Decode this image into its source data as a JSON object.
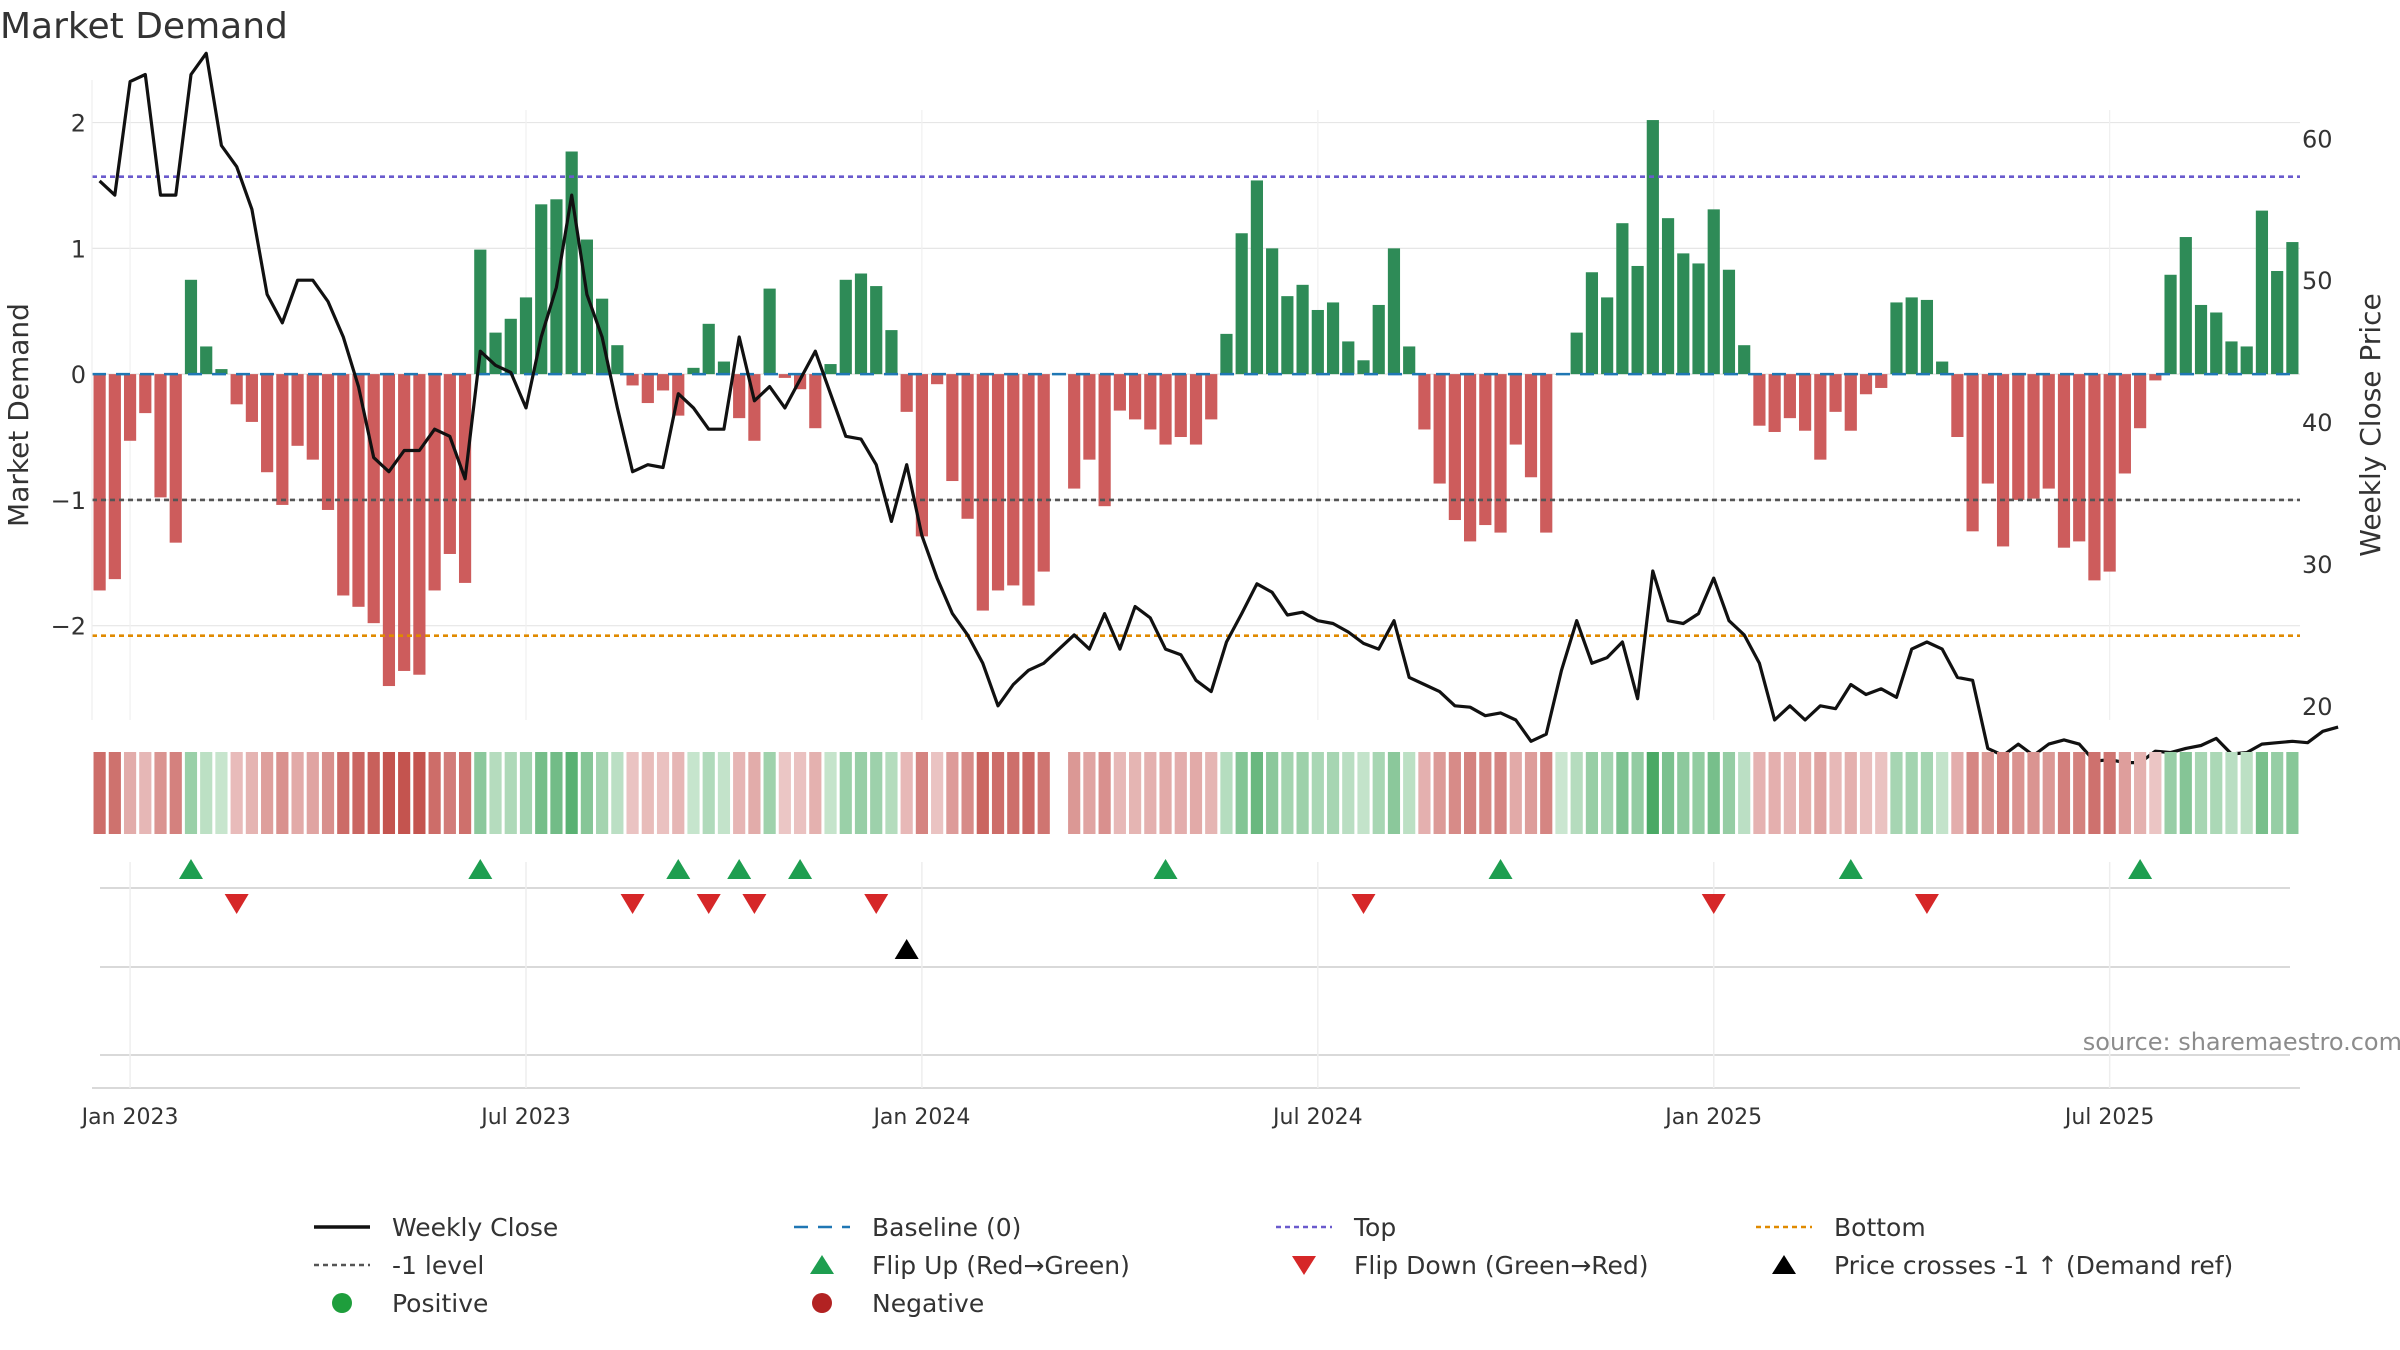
{
  "title": "Market Demand",
  "source": "source: sharemaestro.com",
  "colors": {
    "green": "#2e8b57",
    "red": "#cd5c5c",
    "price": "#111111",
    "baseline": "#1f77b4",
    "top": "#6a5acd",
    "bottom": "#e08a00",
    "neg1": "#555555",
    "flip_up": "#1e9e50",
    "flip_down": "#d62728",
    "cross": "#000000",
    "positive": "#1e9e3c",
    "negative": "#b22222"
  },
  "chart_data": {
    "type": "bar+line",
    "title": "Market Demand",
    "ylabel_left": "Market Demand",
    "ylabel_right": "Weekly Close Price",
    "ylim_left": [
      -2.75,
      2.1
    ],
    "ylim_right": [
      19,
      62
    ],
    "left_ticks": [
      2,
      1,
      0,
      -1,
      -2
    ],
    "left_tick_labels": [
      "2",
      "1",
      "0",
      "−1",
      "−2"
    ],
    "right_ticks": [
      60,
      50,
      40,
      30,
      20
    ],
    "x_ticks": [
      "Jan 2023",
      "Jul 2023",
      "Jan 2024",
      "Jul 2024",
      "Jan 2025",
      "Jul 2025"
    ],
    "x_tick_weeks": [
      2,
      28,
      54,
      80,
      106,
      132
    ],
    "levels": {
      "top": 1.57,
      "bottom": -2.08,
      "neg1": -1.0,
      "baseline": 0
    },
    "demand": [
      -1.72,
      -1.63,
      -0.53,
      -0.31,
      -0.98,
      -1.34,
      0.75,
      0.22,
      0.04,
      -0.24,
      -0.38,
      -0.78,
      -1.04,
      -0.57,
      -0.68,
      -1.08,
      -1.76,
      -1.85,
      -1.98,
      -2.48,
      -2.36,
      -2.39,
      -1.72,
      -1.43,
      -1.66,
      0.99,
      0.33,
      0.44,
      0.61,
      1.35,
      1.39,
      1.77,
      1.07,
      0.6,
      0.23,
      -0.09,
      -0.23,
      -0.13,
      -0.33,
      0.05,
      0.4,
      0.1,
      -0.35,
      -0.53,
      0.68,
      -0.03,
      -0.12,
      -0.43,
      0.08,
      0.75,
      0.8,
      0.7,
      0.35,
      -0.3,
      -1.29,
      -0.08,
      -0.85,
      -1.15,
      -1.88,
      -1.72,
      -1.68,
      -1.84,
      -1.57,
      null,
      -0.91,
      -0.68,
      -1.05,
      -0.29,
      -0.36,
      -0.44,
      -0.56,
      -0.5,
      -0.56,
      -0.36,
      0.32,
      1.12,
      1.54,
      1.0,
      0.62,
      0.71,
      0.51,
      0.57,
      0.26,
      0.11,
      0.55,
      1.0,
      0.22,
      -0.44,
      -0.87,
      -1.16,
      -1.33,
      -1.2,
      -1.26,
      -0.56,
      -0.82,
      -1.26,
      0.0,
      0.33,
      0.81,
      0.61,
      1.2,
      0.86,
      2.02,
      1.24,
      0.96,
      0.88,
      1.31,
      0.83,
      0.23,
      -0.41,
      -0.46,
      -0.35,
      -0.45,
      -0.68,
      -0.3,
      -0.45,
      -0.16,
      -0.11,
      0.57,
      0.61,
      0.59,
      0.1,
      -0.5,
      -1.25,
      -0.87,
      -1.37,
      -1.0,
      -0.99,
      -0.91,
      -1.38,
      -1.33,
      -1.64,
      -1.57,
      -0.79,
      -0.43,
      -0.05,
      0.79,
      1.09,
      0.55,
      0.49,
      0.26,
      0.22,
      1.3,
      0.82,
      1.05
    ],
    "price": [
      57.0,
      56.0,
      64.0,
      64.5,
      56.0,
      56.0,
      64.5,
      66.0,
      59.5,
      58.0,
      55.0,
      49.0,
      47.0,
      50.0,
      50.0,
      48.5,
      46.0,
      42.5,
      37.5,
      36.5,
      38.0,
      38.0,
      39.5,
      39.0,
      36.0,
      45.0,
      44.0,
      43.5,
      41.0,
      46.0,
      49.5,
      56.0,
      49.0,
      46.0,
      41.0,
      36.5,
      37.0,
      36.8,
      42.0,
      41.0,
      39.5,
      39.5,
      46.0,
      41.5,
      42.5,
      41.0,
      43.0,
      45.0,
      42.0,
      39.0,
      38.8,
      37.0,
      33.0,
      37.0,
      32.0,
      29.0,
      26.5,
      25.0,
      23.0,
      20.0,
      21.5,
      22.5,
      23.0,
      24.0,
      25.0,
      24.0,
      26.5,
      24.0,
      27.0,
      26.2,
      24.0,
      23.6,
      21.8,
      21.0,
      24.5,
      26.5,
      28.6,
      28.0,
      26.4,
      26.6,
      26.0,
      25.8,
      25.2,
      24.4,
      24.0,
      26.0,
      22.0,
      21.5,
      21.0,
      20.0,
      19.9,
      19.3,
      19.5,
      19.0,
      17.5,
      18.0,
      22.5,
      26.0,
      23.0,
      23.4,
      24.5,
      20.5,
      29.5,
      26.0,
      25.8,
      26.5,
      29.0,
      26.0,
      25.0,
      23.0,
      19.0,
      20.0,
      19.0,
      20.0,
      19.8,
      21.5,
      20.8,
      21.2,
      20.6,
      24.0,
      24.5,
      24.0,
      22.0,
      21.8,
      17.0,
      16.5,
      17.3,
      16.5,
      17.3,
      17.6,
      17.3,
      16.1,
      16.2,
      16.0,
      16.0,
      16.8,
      16.7,
      17.0,
      17.2,
      17.7,
      16.6,
      16.7,
      17.3,
      17.4,
      17.5,
      17.4,
      18.2,
      18.5
    ],
    "flip_up_weeks": [
      6,
      25,
      38,
      42,
      46,
      70,
      92,
      115,
      134
    ],
    "flip_down_weeks": [
      9,
      35,
      40,
      43,
      51,
      83,
      106,
      120
    ],
    "price_cross_weeks": [
      53
    ]
  },
  "legend": [
    {
      "label": "Weekly Close",
      "symbol": "line",
      "color": "#111111"
    },
    {
      "label": "Baseline (0)",
      "symbol": "dash",
      "color": "#1f77b4"
    },
    {
      "label": "Top",
      "symbol": "dot",
      "color": "#6a5acd"
    },
    {
      "label": "Bottom",
      "symbol": "dot",
      "color": "#e08a00"
    },
    {
      "label": "-1 level",
      "symbol": "dot",
      "color": "#555555"
    },
    {
      "label": "Flip Up (Red→Green)",
      "symbol": "tri-up",
      "color": "#1e9e50"
    },
    {
      "label": "Flip Down (Green→Red)",
      "symbol": "tri-down",
      "color": "#d62728"
    },
    {
      "label": "Price crosses -1 ↑ (Demand ref)",
      "symbol": "tri-up",
      "color": "#000000"
    },
    {
      "label": "Positive",
      "symbol": "circle",
      "color": "#1e9e3c"
    },
    {
      "label": "Negative",
      "symbol": "circle",
      "color": "#b22222"
    }
  ]
}
